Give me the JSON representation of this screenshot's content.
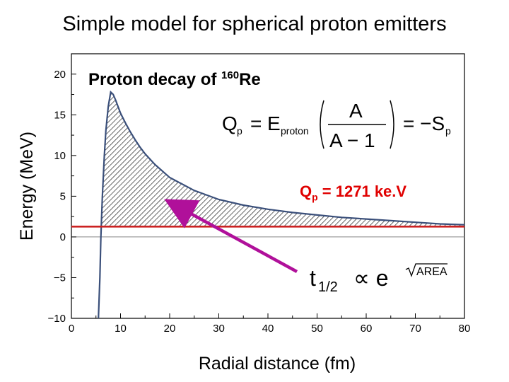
{
  "slide_title": "Simple model for spherical proton emitters",
  "annotations": {
    "proton_decay_prefix": "Proton decay of ",
    "isotope_mass": "160",
    "isotope_symbol": "Re",
    "qp_symbol": "Q",
    "qp_sub": "p",
    "qp_rest": " = 1271 ke.V",
    "half_life_t": "t",
    "half_life_sub": "1/2",
    "half_life_prop": "∝ e",
    "half_life_area": "AREA",
    "formula": {
      "lhs_Q": "Q",
      "lhs_Q_sub": "p",
      "E": "E",
      "E_sub": "proton",
      "num": "A",
      "den": "A − 1",
      "rhs": "= −S",
      "rhs_sub": "p",
      "eq": "="
    }
  },
  "colors": {
    "curve": "#3a4f7a",
    "qp_line": "#cc2222",
    "arrow": "#b0109a",
    "qp_text": "#e00000"
  },
  "chart_data": {
    "type": "line",
    "xlabel": "Radial distance (fm)",
    "ylabel": "Energy (MeV)",
    "xlim": [
      0,
      80
    ],
    "ylim": [
      -10,
      22.5
    ],
    "x_ticks": [
      "0",
      "10",
      "20",
      "30",
      "40",
      "50",
      "60",
      "70",
      "80"
    ],
    "y_ticks": [
      "−10",
      "−5",
      "0",
      "5",
      "10",
      "15",
      "20"
    ],
    "x_tick_values": [
      0,
      10,
      20,
      30,
      40,
      50,
      60,
      70,
      80
    ],
    "y_tick_values": [
      -10,
      -5,
      0,
      5,
      10,
      15,
      20
    ],
    "grid": false,
    "series": [
      {
        "x": [
          5.5,
          5.8,
          6,
          6.3,
          6.7,
          7,
          7.5,
          8,
          8.5,
          9,
          9.5,
          10,
          11,
          12,
          13,
          14,
          15,
          17,
          20,
          25,
          30,
          35,
          40,
          45,
          50,
          55,
          60,
          65,
          70,
          75,
          80
        ],
        "y": [
          -10,
          -5,
          0,
          5,
          10,
          13,
          16,
          17.8,
          17.5,
          16.8,
          16.0,
          15.2,
          14.0,
          12.9,
          11.9,
          11.0,
          10.2,
          8.9,
          7.3,
          5.7,
          4.6,
          3.9,
          3.4,
          3.0,
          2.7,
          2.4,
          2.2,
          2.0,
          1.8,
          1.6,
          1.5
        ]
      }
    ],
    "qp_level_MeV": 1.271,
    "shaded_region": "area under barrier above Q_p level (hatched)"
  }
}
